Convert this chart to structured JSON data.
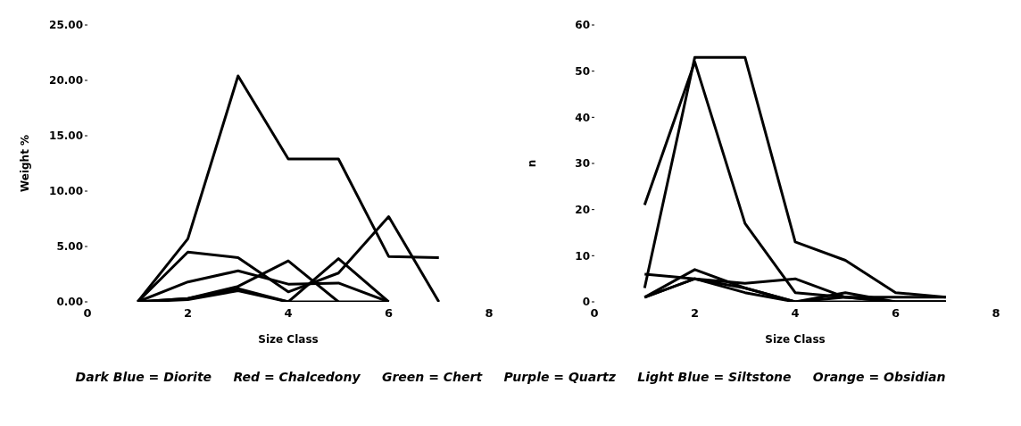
{
  "chart_data": [
    {
      "type": "line",
      "xlabel": "Size Class",
      "ylabel": "Weight %",
      "x": [
        1,
        2,
        3,
        4,
        5,
        6,
        7
      ],
      "xlim": [
        0,
        8
      ],
      "xticks": [
        0,
        2,
        4,
        6,
        8
      ],
      "ylim": [
        0,
        25
      ],
      "yticks": [
        {
          "value": 0,
          "label": "0.00"
        },
        {
          "value": 5,
          "label": "5.00"
        },
        {
          "value": 10,
          "label": "10.00"
        },
        {
          "value": 15,
          "label": "15.00"
        },
        {
          "value": 20,
          "label": "20.00"
        },
        {
          "value": 25,
          "label": "25.00"
        }
      ],
      "marker": "none",
      "line_style": "solid",
      "series": [
        {
          "color": "#000000",
          "values": [
            0,
            5.7,
            20.4,
            12.9,
            12.9,
            4.1,
            4.0
          ]
        },
        {
          "color": "#000000",
          "values": [
            0,
            4.5,
            4.0,
            0.9,
            2.6,
            7.7,
            0
          ]
        },
        {
          "color": "#000000",
          "values": [
            0,
            1.8,
            2.8,
            1.6,
            1.7,
            0,
            null
          ]
        },
        {
          "color": "#000000",
          "values": [
            0,
            0.3,
            1.4,
            3.7,
            0,
            null,
            null
          ]
        },
        {
          "color": "#000000",
          "values": [
            0,
            0.3,
            1.2,
            0,
            3.9,
            0,
            null
          ]
        },
        {
          "color": "#000000",
          "values": [
            0,
            0.2,
            1.0,
            0,
            0,
            0,
            null
          ]
        }
      ]
    },
    {
      "type": "line",
      "xlabel": "Size Class",
      "ylabel": "n",
      "x": [
        1,
        2,
        3,
        4,
        5,
        6,
        7
      ],
      "xlim": [
        0,
        8
      ],
      "xticks": [
        0,
        2,
        4,
        6,
        8
      ],
      "ylim": [
        0,
        60
      ],
      "yticks": [
        0,
        10,
        20,
        30,
        40,
        50,
        60
      ],
      "marker": "none",
      "line_style": "solid",
      "annotations": [
        "Dark Blue = Diorite     Red = Chalcedony     Green = Chert     Purple = Quartz     Light Blue = Siltstone     Orange = Obsidian"
      ],
      "series": [
        {
          "color": "#000000",
          "values": [
            3,
            53,
            53,
            13,
            9,
            2,
            1
          ]
        },
        {
          "color": "#000000",
          "values": [
            21,
            52,
            17,
            2,
            1,
            1,
            1
          ]
        },
        {
          "color": "#000000",
          "values": [
            6,
            5,
            4,
            5,
            1,
            0,
            0
          ]
        },
        {
          "color": "#000000",
          "values": [
            1,
            7,
            3,
            0,
            2,
            0,
            0
          ]
        },
        {
          "color": "#000000",
          "values": [
            1,
            5,
            3,
            0,
            1,
            0,
            0
          ]
        },
        {
          "color": "#000000",
          "values": [
            1,
            5,
            2,
            0,
            0,
            0,
            0
          ]
        }
      ]
    }
  ]
}
